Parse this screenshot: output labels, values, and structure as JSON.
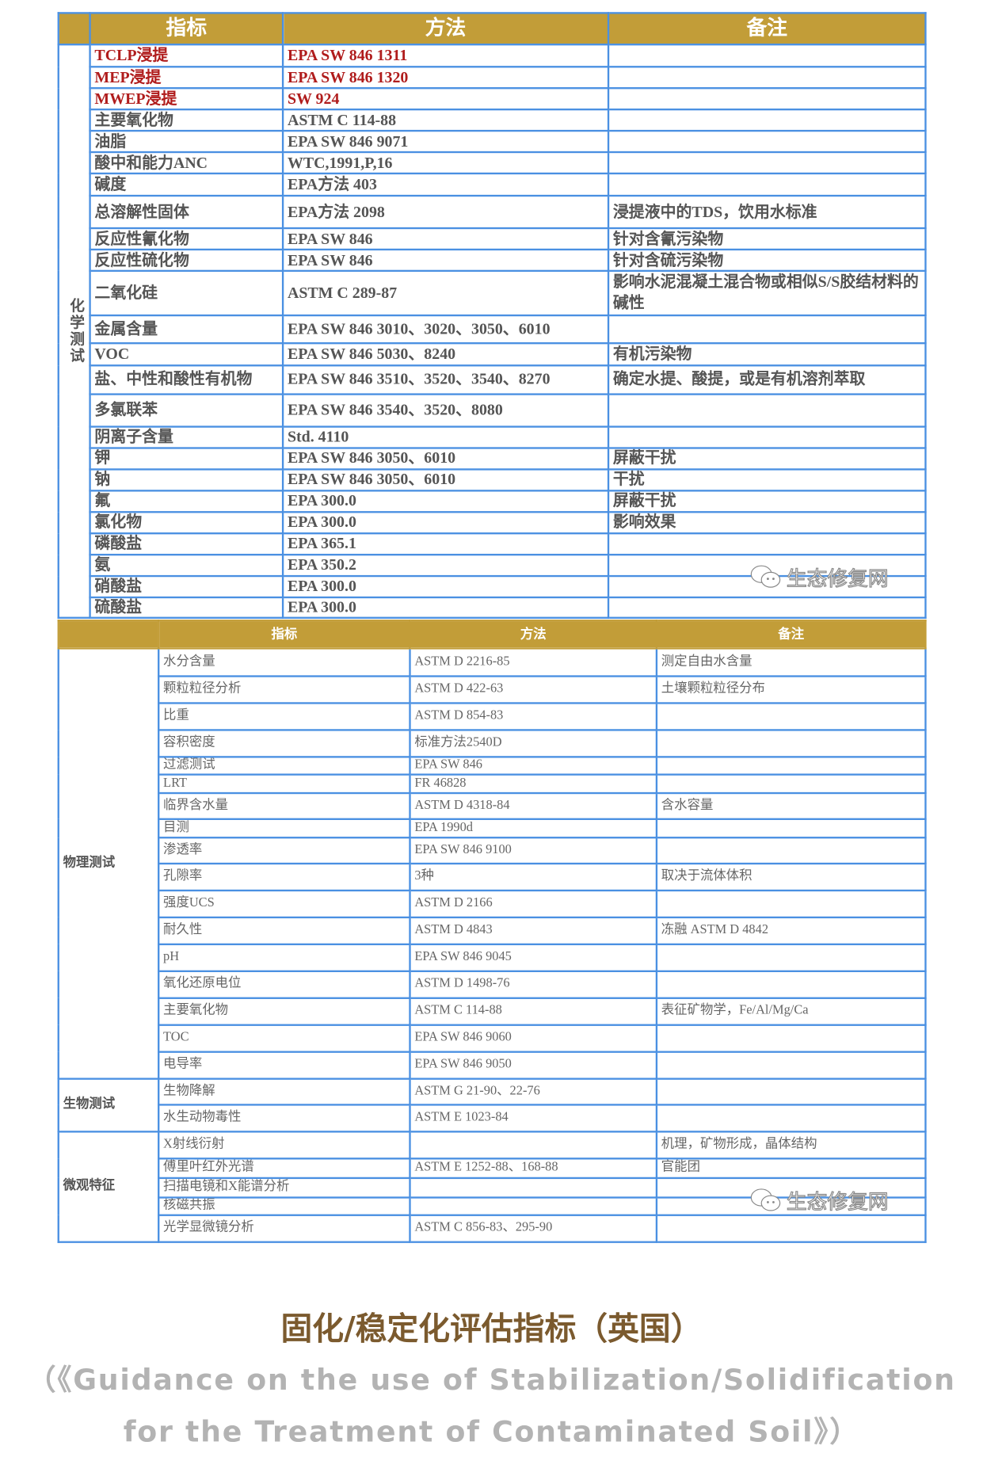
{
  "table1": {
    "headers": [
      "",
      "指标",
      "方法",
      "备注"
    ],
    "category": "化学测试",
    "rows": [
      {
        "indicator": "TCLP浸提",
        "method": "EPA SW 846 1311",
        "note": "",
        "highlight": true
      },
      {
        "indicator": "MEP浸提",
        "method": "EPA SW 846 1320",
        "note": "",
        "highlight": true
      },
      {
        "indicator": "MWEP浸提",
        "method": "SW 924",
        "note": "",
        "highlight": true
      },
      {
        "indicator": "主要氧化物",
        "method": "ASTM C 114-88",
        "note": ""
      },
      {
        "indicator": "油脂",
        "method": "EPA SW 846 9071",
        "note": ""
      },
      {
        "indicator": "酸中和能力ANC",
        "method": "WTC,1991,P,16",
        "note": ""
      },
      {
        "indicator": "碱度",
        "method": "EPA方法 403",
        "note": ""
      },
      {
        "indicator": "总溶解性固体",
        "method": "EPA方法 2098",
        "note": "浸提液中的TDS，饮用水标准"
      },
      {
        "indicator": "反应性氰化物",
        "method": "EPA SW 846",
        "note": "针对含氰污染物"
      },
      {
        "indicator": "反应性硫化物",
        "method": "EPA SW 846",
        "note": "针对含硫污染物"
      },
      {
        "indicator": "二氧化硅",
        "method": "ASTM C 289-87",
        "note": "影响水泥混凝土混合物或相似S/S胶结材料的碱性"
      },
      {
        "indicator": "金属含量",
        "method": "EPA SW 846 3010、3020、3050、6010",
        "note": ""
      },
      {
        "indicator": "VOC",
        "method": "EPA SW 846 5030、8240",
        "note": "有机污染物"
      },
      {
        "indicator": "盐、中性和酸性有机物",
        "method": "EPA SW 846 3510、3520、3540、8270",
        "note": "确定水提、酸提，或是有机溶剂萃取"
      },
      {
        "indicator": "多氯联苯",
        "method": "EPA SW 846 3540、3520、8080",
        "note": ""
      },
      {
        "indicator": "阴离子含量",
        "method": "Std. 4110",
        "note": ""
      },
      {
        "indicator": "钾",
        "method": "EPA SW 846 3050、6010",
        "note": "屏蔽干扰"
      },
      {
        "indicator": "钠",
        "method": "EPA SW 846 3050、6010",
        "note": "干扰"
      },
      {
        "indicator": "氟",
        "method": "EPA 300.0",
        "note": "屏蔽干扰"
      },
      {
        "indicator": "氯化物",
        "method": "EPA 300.0",
        "note": "影响效果"
      },
      {
        "indicator": "磷酸盐",
        "method": "EPA 365.1",
        "note": ""
      },
      {
        "indicator": "氨",
        "method": "EPA 350.2",
        "note": ""
      },
      {
        "indicator": "硝酸盐",
        "method": "EPA 300.0",
        "note": ""
      },
      {
        "indicator": "硫酸盐",
        "method": "EPA 300.0",
        "note": ""
      }
    ]
  },
  "table2": {
    "headers": [
      "",
      "指标",
      "方法",
      "备注"
    ],
    "categories": [
      {
        "name": "物理测试",
        "span": 17
      },
      {
        "name": "生物测试",
        "span": 2
      },
      {
        "name": "微观特征",
        "span": 5
      }
    ],
    "rows": [
      {
        "indicator": "水分含量",
        "method": "ASTM D 2216-85",
        "note": "测定自由水含量"
      },
      {
        "indicator": "颗粒粒径分析",
        "method": "ASTM D 422-63",
        "note": "土壤颗粒粒径分布"
      },
      {
        "indicator": "比重",
        "method": "ASTM D 854-83",
        "note": ""
      },
      {
        "indicator": "容积密度",
        "method": "标准方法2540D",
        "note": ""
      },
      {
        "indicator": "过滤测试",
        "method": "EPA SW 846",
        "note": ""
      },
      {
        "indicator": "LRT",
        "method": "FR 46828",
        "note": ""
      },
      {
        "indicator": "临界含水量",
        "method": "ASTM D 4318-84",
        "note": "含水容量"
      },
      {
        "indicator": "目测",
        "method": "EPA 1990d",
        "note": ""
      },
      {
        "indicator": "渗透率",
        "method": "EPA SW 846 9100",
        "note": ""
      },
      {
        "indicator": "孔隙率",
        "method": "3种",
        "note": "取决于流体体积"
      },
      {
        "indicator": "强度UCS",
        "method": "ASTM D 2166",
        "note": ""
      },
      {
        "indicator": "耐久性",
        "method": "ASTM D 4843",
        "note": "冻融 ASTM D 4842"
      },
      {
        "indicator": "pH",
        "method": "EPA SW 846 9045",
        "note": ""
      },
      {
        "indicator": "氧化还原电位",
        "method": "ASTM D 1498-76",
        "note": ""
      },
      {
        "indicator": "主要氧化物",
        "method": "ASTM C 114-88",
        "note": "表征矿物学，Fe/Al/Mg/Ca"
      },
      {
        "indicator": "TOC",
        "method": "EPA SW 846 9060",
        "note": ""
      },
      {
        "indicator": "电导率",
        "method": "EPA SW 846 9050",
        "note": ""
      },
      {
        "indicator": "生物降解",
        "method": "ASTM G 21-90、22-76",
        "note": ""
      },
      {
        "indicator": "水生动物毒性",
        "method": "ASTM E 1023-84",
        "note": ""
      },
      {
        "indicator": "X射线衍射",
        "method": "",
        "note": "机理，矿物形成，晶体结构"
      },
      {
        "indicator": "傅里叶红外光谱",
        "method": "ASTM E 1252-88、168-88",
        "note": "官能团"
      },
      {
        "indicator": "扫描电镜和X能谱分析",
        "method": "",
        "note": ""
      },
      {
        "indicator": "核磁共振",
        "method": "",
        "note": ""
      },
      {
        "indicator": "光学显微镜分析",
        "method": "ASTM C 856-83、295-90",
        "note": ""
      }
    ]
  },
  "watermark": {
    "text": "生态修复网",
    "icon": "wechat-icon"
  },
  "caption": {
    "title": "固化/稳定化评估指标（英国）",
    "subtitle_line1": "（《Guidance on the use of Stabilization/Solidification",
    "subtitle_line2": "for the Treatment of Contaminated Soil》）"
  },
  "colors": {
    "header_gold": "#c29d38",
    "border_blue": "#4a90e2",
    "highlight_red": "#b01c1c",
    "title_brown": "#7b5a2e"
  }
}
